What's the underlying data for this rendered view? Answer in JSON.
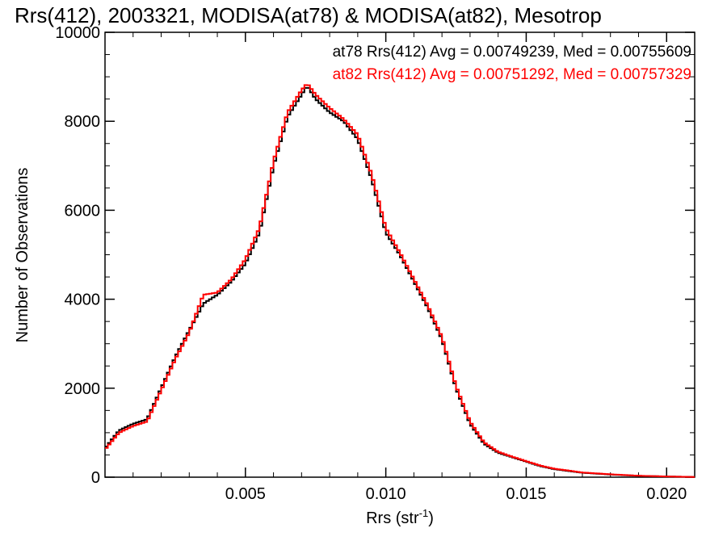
{
  "chart_data": {
    "type": "line",
    "style": "step-histogram",
    "title": "Rrs(412), 2003321, MODISA(at78) & MODISA(at82), Mesotrop",
    "xlabel_main": "Rrs (str",
    "xlabel_sup": "-1",
    "xlabel_close": ")",
    "ylabel": "Number of Observations",
    "xlim": [
      0.0,
      0.021
    ],
    "ylim": [
      0,
      10000
    ],
    "xticks": [
      {
        "value": 0.005,
        "label": "0.005"
      },
      {
        "value": 0.01,
        "label": "0.010"
      },
      {
        "value": 0.015,
        "label": "0.015"
      },
      {
        "value": 0.02,
        "label": "0.020"
      }
    ],
    "yticks": [
      {
        "value": 0,
        "label": "0"
      },
      {
        "value": 2000,
        "label": "2000"
      },
      {
        "value": 4000,
        "label": "4000"
      },
      {
        "value": 6000,
        "label": "6000"
      },
      {
        "value": 8000,
        "label": "8000"
      },
      {
        "value": 10000,
        "label": "10000"
      }
    ],
    "annotations": [
      {
        "text": "at78 Rrs(412) Avg = 0.00749239, Med = 0.00755609",
        "color": "#000000"
      },
      {
        "text": "at82 Rrs(412) Avg = 0.00751292, Med = 0.00757329",
        "color": "#ff0000"
      }
    ],
    "series": [
      {
        "color": "#000000",
        "x": [
          0.0,
          0.0005,
          0.001,
          0.0015,
          0.002,
          0.0025,
          0.003,
          0.0035,
          0.004,
          0.0045,
          0.005,
          0.0055,
          0.006,
          0.0065,
          0.007,
          0.0072,
          0.0075,
          0.008,
          0.0085,
          0.009,
          0.0095,
          0.01,
          0.0105,
          0.011,
          0.0115,
          0.012,
          0.0125,
          0.013,
          0.0135,
          0.014,
          0.0145,
          0.015,
          0.0155,
          0.016,
          0.0165,
          0.017,
          0.018,
          0.019,
          0.02,
          0.021
        ],
        "y": [
          650,
          1050,
          1200,
          1300,
          2000,
          2700,
          3300,
          3900,
          4100,
          4400,
          4800,
          5500,
          7000,
          8100,
          8600,
          8800,
          8500,
          8200,
          8000,
          7600,
          6700,
          5500,
          5000,
          4400,
          3800,
          3100,
          2000,
          1200,
          750,
          550,
          450,
          350,
          250,
          180,
          140,
          100,
          60,
          30,
          15,
          5
        ]
      },
      {
        "color": "#ff0000",
        "x": [
          0.0,
          0.0005,
          0.001,
          0.0015,
          0.002,
          0.0025,
          0.003,
          0.0035,
          0.004,
          0.0045,
          0.005,
          0.0055,
          0.006,
          0.0065,
          0.007,
          0.0072,
          0.0075,
          0.008,
          0.0085,
          0.009,
          0.0095,
          0.01,
          0.0105,
          0.011,
          0.0115,
          0.012,
          0.0125,
          0.013,
          0.0135,
          0.014,
          0.0145,
          0.015,
          0.0155,
          0.016,
          0.0165,
          0.017,
          0.018,
          0.019,
          0.02,
          0.021
        ],
        "y": [
          620,
          1000,
          1150,
          1250,
          1950,
          2650,
          3250,
          4100,
          4150,
          4450,
          4900,
          5600,
          7100,
          8200,
          8700,
          8850,
          8600,
          8300,
          8050,
          7700,
          6800,
          5600,
          5050,
          4450,
          3850,
          3150,
          2050,
          1250,
          780,
          570,
          460,
          360,
          260,
          190,
          150,
          105,
          65,
          32,
          16,
          5
        ]
      }
    ]
  }
}
